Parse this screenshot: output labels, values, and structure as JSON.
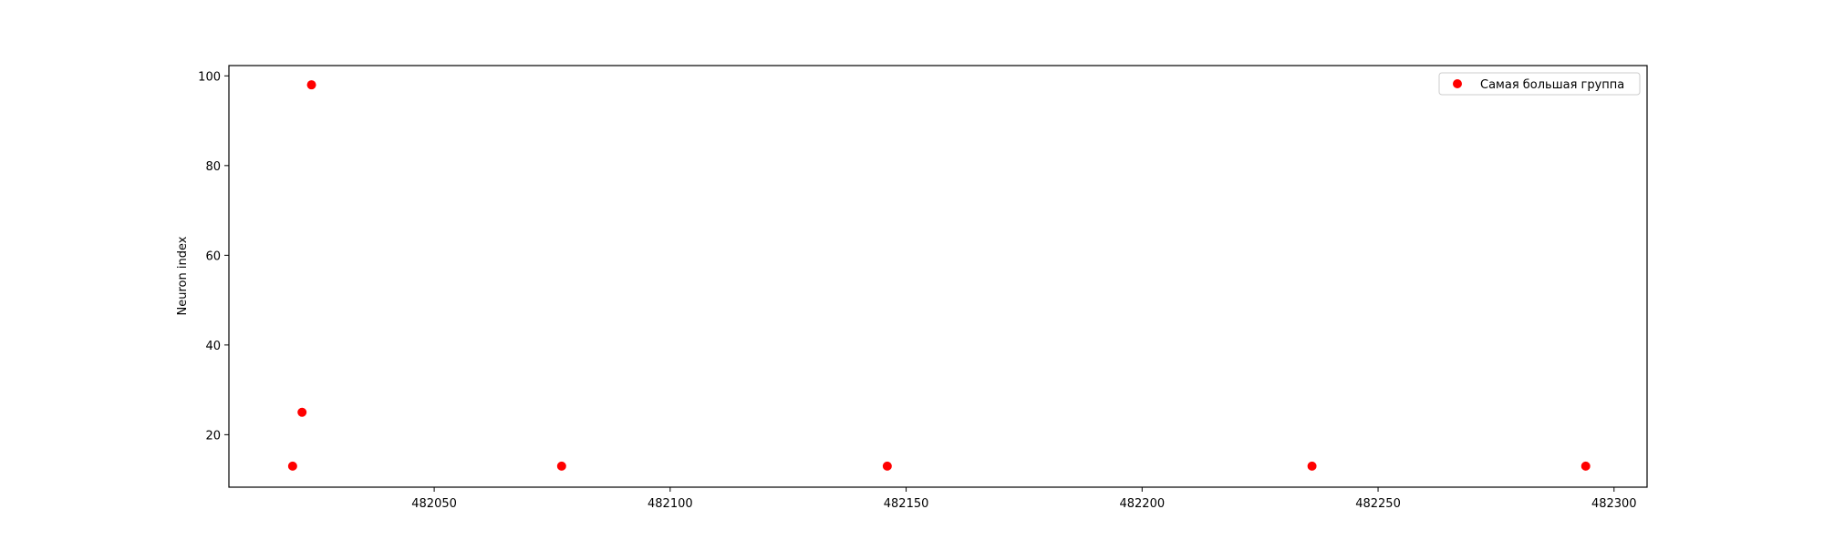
{
  "chart_data": {
    "type": "scatter",
    "title": "",
    "xlabel": "",
    "ylabel": "Neuron index",
    "xlim": [
      482006.5,
      482307
    ],
    "ylim": [
      8.3,
      102.3
    ],
    "x_ticks": [
      482050,
      482100,
      482150,
      482200,
      482250,
      482300
    ],
    "y_ticks": [
      20,
      40,
      60,
      80,
      100
    ],
    "grid": false,
    "legend_position": "top-right",
    "series": [
      {
        "name": "Самая большая группа",
        "color": "#ff0000",
        "marker": "circle",
        "points": [
          {
            "x": 482020,
            "y": 13
          },
          {
            "x": 482022,
            "y": 25
          },
          {
            "x": 482024,
            "y": 98
          },
          {
            "x": 482077,
            "y": 13
          },
          {
            "x": 482146,
            "y": 13
          },
          {
            "x": 482236,
            "y": 13
          },
          {
            "x": 482294,
            "y": 13
          }
        ]
      }
    ]
  }
}
